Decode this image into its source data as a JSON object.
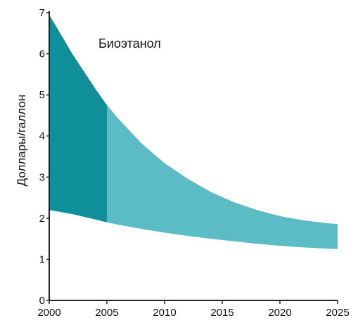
{
  "chart_data": {
    "type": "area",
    "title": "Биоэтанол",
    "xlabel": "",
    "ylabel": "Доллары/галлон",
    "xlim": [
      2000,
      2025
    ],
    "ylim": [
      0,
      7
    ],
    "x_ticks": [
      2000,
      2005,
      2010,
      2015,
      2020,
      2025
    ],
    "y_ticks": [
      0,
      1,
      2,
      3,
      4,
      5,
      6,
      7
    ],
    "grid": false,
    "legend": "none",
    "colors": {
      "band_dark": "#0e8f99",
      "band_light": "#5bbcc6",
      "axis": "#222222"
    },
    "split_x": 2005,
    "series": [
      {
        "x": [
          2000,
          2002,
          2004,
          2005,
          2006,
          2008,
          2010,
          2012,
          2014,
          2016,
          2018,
          2020,
          2022,
          2024,
          2025
        ],
        "upper": [
          6.95,
          6.0,
          5.15,
          4.75,
          4.42,
          3.82,
          3.34,
          2.96,
          2.64,
          2.39,
          2.2,
          2.05,
          1.95,
          1.88,
          1.86
        ],
        "lower": [
          2.2,
          2.1,
          1.97,
          1.9,
          1.84,
          1.74,
          1.65,
          1.57,
          1.5,
          1.44,
          1.38,
          1.33,
          1.29,
          1.26,
          1.25
        ]
      }
    ]
  }
}
